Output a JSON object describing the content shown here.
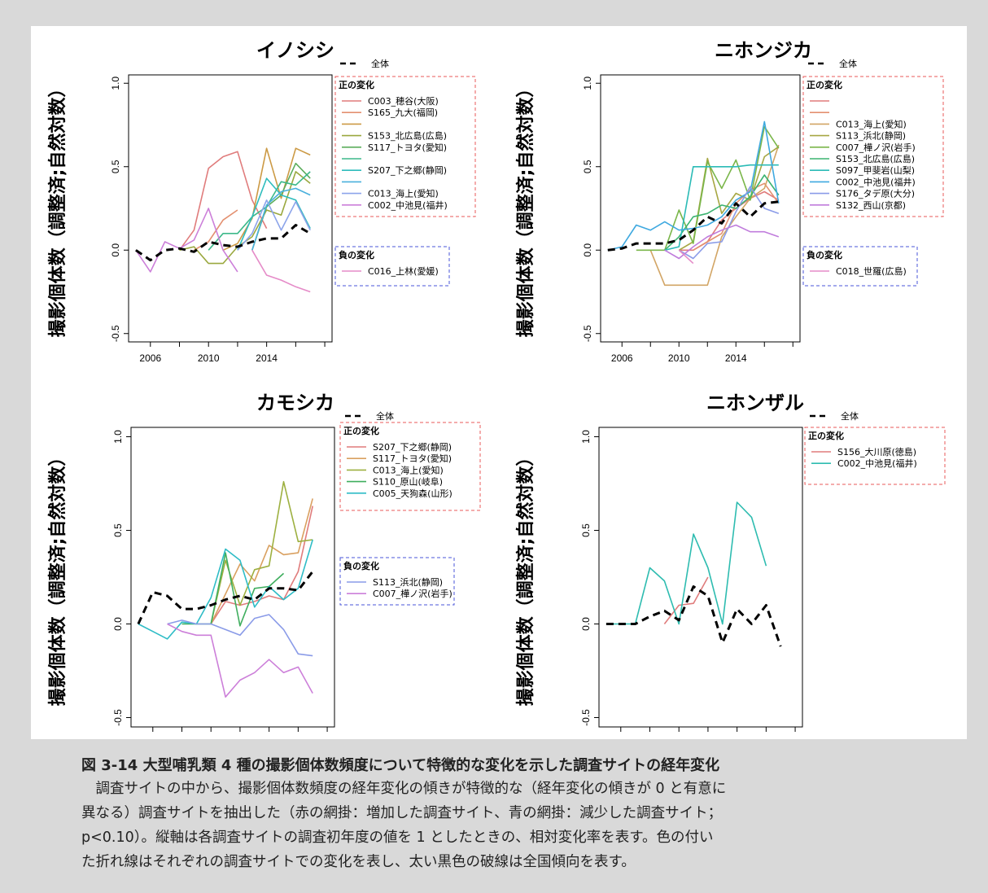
{
  "figure": {
    "caption_title": "図 3-14 大型哺乳類 4 種の撮影個体数頻度について特徴的な変化を示した調査サイトの経年変化",
    "caption_lines": [
      "調査サイトの中から、撮影個体数頻度の経年変化の傾きが特徴的な（経年変化の傾きが 0 と有意に",
      "異なる）調査サイトを抽出した（赤の網掛：増加した調査サイト、青の網掛：減少した調査サイト；",
      "p<0.10）。縦軸は各調査サイトの調査初年度の値を 1 としたときの、相対変化率を表す。色の付い",
      "た折れ線はそれぞれの調査サイトでの変化を表し、太い黒色の破線は全国傾向を表す。"
    ]
  },
  "chart_data": [
    {
      "type": "line",
      "title": "イノシシ",
      "ylabel": "撮影個体数（調整済;自然対数）",
      "xlim": [
        2004.5,
        2018.5
      ],
      "ylim": [
        -0.55,
        1.05
      ],
      "x_ticks": [
        2006,
        2010,
        2014
      ],
      "y_ticks": [
        -0.5,
        0.0,
        0.5,
        1.0
      ],
      "y_tick_labels": [
        "-0.5",
        "0.0",
        "0.5",
        "1.0"
      ],
      "legend": {
        "overall_label": "全体",
        "positive_header": "正の変化",
        "negative_header": "負の変化",
        "positive_labels": [
          "C003_穂谷(大阪)",
          "S165_九大(福岡)",
          "",
          "S153_北広島(広島)",
          "S117_トヨタ(愛知)",
          "",
          "S207_下之郷(静岡)",
          "",
          "C013_海上(愛知)",
          "C002_中池見(福井)"
        ],
        "negative_labels": [
          "C016_上林(愛媛)"
        ]
      },
      "overall": {
        "x": [
          2005,
          2006,
          2007,
          2008,
          2009,
          2010,
          2011,
          2012,
          2013,
          2014,
          2015,
          2016,
          2017
        ],
        "values": [
          0.0,
          -0.06,
          0.0,
          0.01,
          -0.01,
          0.05,
          0.03,
          0.02,
          0.05,
          0.07,
          0.07,
          0.15,
          0.1
        ]
      },
      "positive_series": [
        {
          "name": "C003_穂谷(大阪)",
          "color": "#e07c7c",
          "x": [
            2008,
            2009,
            2010,
            2011,
            2012,
            2013,
            2014
          ],
          "values": [
            0.0,
            0.12,
            0.49,
            0.56,
            0.59,
            0.3,
            0.13
          ]
        },
        {
          "name": "S165_九大(福岡)",
          "color": "#e39070",
          "x": [
            2009,
            2010,
            2011,
            2012
          ],
          "values": [
            0.0,
            0.05,
            0.18,
            0.24
          ]
        },
        {
          "name": "",
          "color": "#cc9a45",
          "x": [
            2011,
            2012,
            2013,
            2014,
            2015,
            2016,
            2017
          ],
          "values": [
            0.0,
            0.04,
            0.19,
            0.61,
            0.31,
            0.61,
            0.57
          ]
        },
        {
          "name": "S153_北広島(広島)",
          "color": "#9aa83f",
          "x": [
            2008,
            2009,
            2010,
            2011,
            2012,
            2013,
            2014,
            2015,
            2016,
            2017
          ],
          "values": [
            0.0,
            0.02,
            -0.08,
            -0.08,
            0.02,
            0.08,
            0.24,
            0.21,
            0.47,
            0.4
          ]
        },
        {
          "name": "S117_トヨタ(愛知)",
          "color": "#5cad5c",
          "x": [
            2013,
            2014,
            2015,
            2016,
            2017
          ],
          "values": [
            0.0,
            0.26,
            0.33,
            0.52,
            0.43
          ]
        },
        {
          "name": "",
          "color": "#3db98a",
          "x": [
            2010,
            2011,
            2012,
            2013,
            2014,
            2015,
            2016,
            2017
          ],
          "values": [
            0.0,
            0.1,
            0.1,
            0.2,
            0.26,
            0.41,
            0.39,
            0.47
          ]
        },
        {
          "name": "S207_下之郷(静岡)",
          "color": "#2ebcbc",
          "x": [
            2012,
            2013,
            2014,
            2015,
            2016,
            2017
          ],
          "values": [
            0.0,
            0.2,
            0.43,
            0.33,
            0.3,
            0.13
          ]
        },
        {
          "name": "",
          "color": "#4ab0dd",
          "x": [
            2013,
            2014,
            2015,
            2016,
            2017
          ],
          "values": [
            0.0,
            0.27,
            0.35,
            0.37,
            0.33
          ]
        },
        {
          "name": "C013_海上(愛知)",
          "color": "#8ca4ea",
          "x": [
            2012,
            2013,
            2014,
            2015,
            2016,
            2017
          ],
          "values": [
            0.0,
            0.1,
            0.3,
            0.12,
            0.29,
            0.12
          ]
        },
        {
          "name": "C002_中池見(福井)",
          "color": "#cc7fd9",
          "x": [
            2005,
            2006,
            2007,
            2008,
            2009,
            2010,
            2011,
            2012
          ],
          "values": [
            0.0,
            -0.13,
            0.05,
            0.01,
            0.06,
            0.25,
            0.0,
            -0.13
          ]
        }
      ],
      "negative_series": [
        {
          "name": "C016_上林(愛媛)",
          "color": "#e58bc8",
          "x": [
            2013,
            2014,
            2015,
            2016,
            2017
          ],
          "values": [
            0.0,
            -0.15,
            -0.18,
            -0.22,
            -0.25
          ]
        }
      ]
    },
    {
      "type": "line",
      "title": "ニホンジカ",
      "ylabel": "撮影個体数（調整済;自然対数）",
      "xlim": [
        2004.5,
        2018.5
      ],
      "ylim": [
        -0.55,
        1.05
      ],
      "x_ticks": [
        2006,
        2010,
        2014
      ],
      "y_ticks": [
        -0.5,
        0.0,
        0.5,
        1.0
      ],
      "y_tick_labels": [
        "-0.5",
        "0.0",
        "0.5",
        "1.0"
      ],
      "legend": {
        "overall_label": "全体",
        "positive_header": "正の変化",
        "negative_header": "負の変化",
        "positive_labels": [
          "",
          "",
          "C013_海上(愛知)",
          "S113_浜北(静岡)",
          "C007_樺ノ沢(岩手)",
          "S153_北広島(広島)",
          "S097_甲斐岩(山梨)",
          "C002_中池見(福井)",
          "S176_タデ原(大分)",
          "S132_西山(京都)"
        ],
        "negative_labels": [
          "C018_世羅(広島)"
        ]
      },
      "overall": {
        "x": [
          2005,
          2006,
          2007,
          2008,
          2009,
          2010,
          2011,
          2012,
          2013,
          2014,
          2015,
          2016,
          2017
        ],
        "values": [
          0.0,
          0.01,
          0.04,
          0.04,
          0.04,
          0.06,
          0.12,
          0.2,
          0.16,
          0.28,
          0.2,
          0.28,
          0.29
        ]
      },
      "positive_series": [
        {
          "name": "",
          "color": "#e07c7c",
          "x": [
            2010,
            2011,
            2012,
            2013,
            2014,
            2015,
            2016,
            2017
          ],
          "values": [
            0.0,
            0.0,
            0.05,
            0.18,
            0.25,
            0.31,
            0.35,
            0.3
          ]
        },
        {
          "name": "",
          "color": "#e39070",
          "x": [
            2011,
            2012,
            2013,
            2014,
            2015,
            2016,
            2017
          ],
          "values": [
            0.0,
            0.05,
            0.1,
            0.28,
            0.36,
            0.4,
            0.28
          ]
        },
        {
          "name": "C013_海上(愛知)",
          "color": "#d2a565",
          "x": [
            2008,
            2009,
            2010,
            2011,
            2012,
            2013,
            2014,
            2015,
            2016,
            2017
          ],
          "values": [
            0.0,
            -0.21,
            -0.21,
            -0.21,
            -0.21,
            0.08,
            0.2,
            0.31,
            0.37,
            0.63
          ]
        },
        {
          "name": "S113_浜北(静岡)",
          "color": "#a7a743",
          "x": [
            2010,
            2011,
            2012,
            2013,
            2014,
            2015,
            2016,
            2017
          ],
          "values": [
            0.0,
            0.05,
            0.55,
            0.22,
            0.34,
            0.3,
            0.56,
            0.62
          ]
        },
        {
          "name": "C007_樺ノ沢(岩手)",
          "color": "#7ab64a",
          "x": [
            2007,
            2008,
            2009,
            2010,
            2011,
            2012,
            2013,
            2014,
            2015,
            2016,
            2017
          ],
          "values": [
            0.0,
            0.0,
            0.0,
            0.24,
            0.04,
            0.53,
            0.37,
            0.54,
            0.3,
            0.74,
            0.61
          ]
        },
        {
          "name": "S153_北広島(広島)",
          "color": "#3cb371",
          "x": [
            2009,
            2010,
            2011,
            2012,
            2013,
            2014,
            2015,
            2016,
            2017
          ],
          "values": [
            0.0,
            0.08,
            0.2,
            0.22,
            0.27,
            0.25,
            0.32,
            0.45,
            0.33
          ]
        },
        {
          "name": "S097_甲斐岩(山梨)",
          "color": "#2bbbb6",
          "x": [
            2009,
            2010,
            2011,
            2012,
            2013,
            2014,
            2015,
            2016,
            2017
          ],
          "values": [
            0.0,
            0.02,
            0.5,
            0.5,
            0.5,
            0.5,
            0.51,
            0.51,
            0.51
          ]
        },
        {
          "name": "C002_中池見(福井)",
          "color": "#3fa9e0",
          "x": [
            2005,
            2006,
            2007,
            2008,
            2009,
            2010,
            2011,
            2012,
            2013,
            2014,
            2015,
            2016,
            2017
          ],
          "values": [
            0.0,
            0.02,
            0.15,
            0.12,
            0.17,
            0.12,
            0.13,
            0.15,
            0.2,
            0.3,
            0.35,
            0.77,
            0.28
          ]
        },
        {
          "name": "S176_タデ原(大分)",
          "color": "#8a9be8",
          "x": [
            2010,
            2011,
            2012,
            2013,
            2014,
            2015,
            2016,
            2017
          ],
          "values": [
            0.0,
            -0.05,
            0.04,
            0.05,
            0.23,
            0.38,
            0.25,
            0.22
          ]
        },
        {
          "name": "S132_西山(京都)",
          "color": "#c07cdc",
          "x": [
            2009,
            2010,
            2011,
            2012,
            2013,
            2014,
            2015,
            2016,
            2017
          ],
          "values": [
            0.0,
            -0.05,
            0.02,
            0.08,
            0.12,
            0.15,
            0.11,
            0.11,
            0.08
          ]
        }
      ],
      "negative_series": [
        {
          "name": "C018_世羅(広島)",
          "color": "#e58bc8",
          "x": [
            2010,
            2011
          ],
          "values": [
            0.0,
            -0.08
          ]
        }
      ]
    },
    {
      "type": "line",
      "title": "カモシカ",
      "ylabel": "撮影個体数（調整済;自然対数）",
      "xlim": [
        2004.5,
        2018.5
      ],
      "ylim": [
        -0.55,
        1.05
      ],
      "x_ticks": [
        2006,
        2010,
        2014
      ],
      "y_ticks": [
        -0.5,
        0.0,
        0.5,
        1.0
      ],
      "y_tick_labels": [
        "-0.5",
        "0.0",
        "0.5",
        "1.0"
      ],
      "legend": {
        "overall_label": "全体",
        "positive_header": "正の変化",
        "negative_header": "負の変化",
        "positive_labels": [
          "S207_下之郷(静岡)",
          "S117_トヨタ(愛知)",
          "C013_海上(愛知)",
          "S110_原山(岐阜)",
          "C005_天狗森(山形)"
        ],
        "negative_labels": [
          "S113_浜北(静岡)",
          "C007_樺ノ沢(岩手)"
        ]
      },
      "overall": {
        "x": [
          2005,
          2006,
          2007,
          2008,
          2009,
          2010,
          2011,
          2012,
          2013,
          2014,
          2015,
          2016,
          2017
        ],
        "values": [
          0.0,
          0.17,
          0.15,
          0.08,
          0.08,
          0.1,
          0.13,
          0.15,
          0.13,
          0.19,
          0.19,
          0.18,
          0.28
        ]
      },
      "positive_series": [
        {
          "name": "S207_下之郷(静岡)",
          "color": "#e07c7c",
          "x": [
            2010,
            2011,
            2012,
            2013,
            2014,
            2015,
            2016,
            2017
          ],
          "values": [
            0.0,
            0.12,
            0.1,
            0.12,
            0.15,
            0.13,
            0.28,
            0.63
          ]
        },
        {
          "name": "S117_トヨタ(愛知)",
          "color": "#d9a060",
          "x": [
            2010,
            2011,
            2012,
            2013,
            2014,
            2015,
            2016,
            2017
          ],
          "values": [
            0.0,
            0.16,
            0.32,
            0.23,
            0.42,
            0.37,
            0.38,
            0.67
          ]
        },
        {
          "name": "C013_海上(愛知)",
          "color": "#9db040",
          "x": [
            2010,
            2011,
            2012,
            2013,
            2014,
            2015,
            2016,
            2017
          ],
          "values": [
            0.0,
            0.34,
            0.1,
            0.29,
            0.31,
            0.76,
            0.44,
            0.45
          ]
        },
        {
          "name": "S110_原山(岐阜)",
          "color": "#3fae5e",
          "x": [
            2008,
            2009,
            2010,
            2011,
            2012,
            2013,
            2014,
            2015
          ],
          "values": [
            0.0,
            0.0,
            0.0,
            0.38,
            -0.01,
            0.19,
            0.2,
            0.27
          ]
        },
        {
          "name": "C005_天狗森(山形)",
          "color": "#2ebcc6",
          "x": [
            2005,
            2006,
            2007,
            2008,
            2009,
            2010,
            2011,
            2012,
            2013,
            2014,
            2015,
            2016,
            2017
          ],
          "values": [
            0.0,
            -0.04,
            -0.08,
            0.01,
            0.0,
            0.14,
            0.4,
            0.34,
            0.09,
            0.2,
            0.13,
            0.19,
            0.45
          ]
        }
      ],
      "negative_series": [
        {
          "name": "S113_浜北(静岡)",
          "color": "#8a9be8",
          "x": [
            2007,
            2008,
            2009,
            2010,
            2011,
            2012,
            2013,
            2014,
            2015,
            2016,
            2017
          ],
          "values": [
            0.0,
            0.02,
            0.0,
            0.0,
            -0.03,
            -0.06,
            0.03,
            0.05,
            -0.03,
            -0.16,
            -0.17
          ]
        },
        {
          "name": "C007_樺ノ沢(岩手)",
          "color": "#cc7fd9",
          "x": [
            2007,
            2008,
            2009,
            2010,
            2011,
            2012,
            2013,
            2014,
            2015,
            2016,
            2017
          ],
          "values": [
            0.0,
            -0.04,
            -0.06,
            -0.06,
            -0.39,
            -0.3,
            -0.26,
            -0.19,
            -0.26,
            -0.23,
            -0.37
          ]
        }
      ]
    },
    {
      "type": "line",
      "title": "ニホンザル",
      "ylabel": "撮影個体数（調整済;自然対数）",
      "xlim": [
        2004.5,
        2018.5
      ],
      "ylim": [
        -0.55,
        1.05
      ],
      "x_ticks": [
        2006,
        2010,
        2014
      ],
      "y_ticks": [
        -0.5,
        0.0,
        0.5,
        1.0
      ],
      "y_tick_labels": [
        "-0.5",
        "0.0",
        "0.5",
        "1.0"
      ],
      "legend": {
        "overall_label": "全体",
        "positive_header": "正の変化",
        "negative_header": "",
        "positive_labels": [
          "S156_大川原(徳島)",
          "C002_中池見(福井)"
        ],
        "negative_labels": []
      },
      "overall": {
        "x": [
          2005,
          2006,
          2007,
          2008,
          2009,
          2010,
          2011,
          2012,
          2013,
          2014,
          2015,
          2016,
          2017
        ],
        "values": [
          0.0,
          0.0,
          0.0,
          0.04,
          0.07,
          0.02,
          0.2,
          0.15,
          -0.1,
          0.08,
          0.0,
          0.1,
          -0.12
        ]
      },
      "positive_series": [
        {
          "name": "S156_大川原(徳島)",
          "color": "#e07c7c",
          "x": [
            2009,
            2010,
            2011,
            2012
          ],
          "values": [
            0.0,
            0.1,
            0.11,
            0.25
          ]
        },
        {
          "name": "C002_中池見(福井)",
          "color": "#2ebcb0",
          "x": [
            2005,
            2006,
            2007,
            2008,
            2009,
            2010,
            2011,
            2012,
            2013,
            2014,
            2015,
            2016
          ],
          "values": [
            0.0,
            0.0,
            0.0,
            0.3,
            0.23,
            0.0,
            0.48,
            0.3,
            0.0,
            0.65,
            0.57,
            0.31
          ]
        }
      ],
      "negative_series": []
    }
  ]
}
